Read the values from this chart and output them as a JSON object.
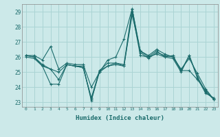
{
  "bg_color": "#cce9e9",
  "grid_color": "#aad4d4",
  "line_color": "#1a6b6b",
  "xlabel": "Humidex (Indice chaleur)",
  "ylim": [
    22.7,
    29.5
  ],
  "xlim": [
    -0.5,
    23.5
  ],
  "yticks": [
    23,
    24,
    25,
    26,
    27,
    28,
    29
  ],
  "xtick_labels": [
    "0",
    "1",
    "2",
    "3",
    "4",
    "5",
    "6",
    "7",
    "8",
    "9",
    "10",
    "11",
    "12",
    "13",
    "14",
    "15",
    "16",
    "17",
    "18",
    "19",
    "20",
    "21",
    "22",
    "23"
  ],
  "series": [
    [
      26.1,
      26.1,
      25.8,
      26.7,
      25.2,
      25.6,
      25.5,
      25.5,
      24.0,
      25.0,
      25.8,
      26.0,
      27.2,
      29.2,
      26.4,
      26.0,
      26.4,
      26.0,
      26.1,
      25.1,
      26.1,
      24.7,
      23.7,
      23.2
    ],
    [
      26.0,
      25.9,
      25.4,
      25.2,
      25.0,
      25.5,
      25.4,
      25.4,
      23.1,
      25.1,
      25.4,
      25.5,
      25.4,
      29.0,
      26.1,
      26.0,
      26.2,
      26.0,
      25.9,
      25.0,
      26.1,
      24.6,
      23.6,
      23.3
    ],
    [
      26.1,
      26.0,
      25.5,
      25.2,
      24.5,
      25.5,
      25.4,
      25.3,
      23.2,
      25.0,
      25.4,
      25.6,
      25.4,
      28.8,
      26.4,
      26.1,
      26.5,
      26.2,
      26.0,
      25.1,
      25.1,
      24.5,
      23.8,
      23.2
    ],
    [
      26.1,
      26.0,
      25.4,
      24.2,
      24.2,
      25.5,
      25.4,
      25.3,
      23.3,
      25.1,
      25.6,
      25.6,
      25.5,
      29.2,
      26.3,
      25.9,
      26.3,
      26.1,
      26.0,
      25.2,
      25.9,
      24.9,
      23.9,
      23.2
    ]
  ]
}
